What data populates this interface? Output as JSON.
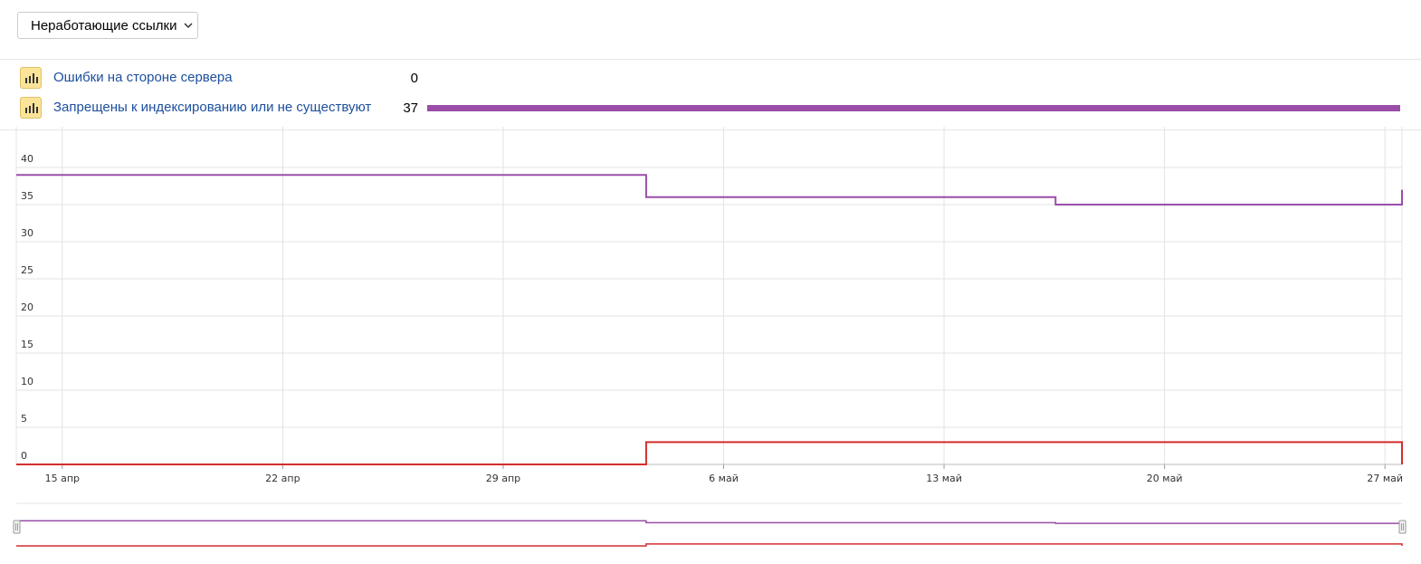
{
  "filter": {
    "selected": "Неработающие ссылки",
    "icon": "chevron-down-icon"
  },
  "legend": [
    {
      "label": "Ошибки на стороне сервера",
      "value": "0",
      "color": "#d42d2d",
      "icon": "bar-chart-icon"
    },
    {
      "label": "Запрещены к индексированию или не существуют",
      "value": "37",
      "color": "#9a4ea8",
      "icon": "bar-chart-icon"
    }
  ],
  "chart_data": {
    "type": "line",
    "step": true,
    "grid": true,
    "ylim": [
      0,
      45
    ],
    "y_ticks": [
      "0",
      "5",
      "10",
      "15",
      "20",
      "25",
      "30",
      "35",
      "40"
    ],
    "x_ticks": [
      "15 апр",
      "22 апр",
      "29 апр",
      "6 май",
      "13 май",
      "20 май",
      "27 май"
    ],
    "xlim": [
      "2020-04-14",
      "2020-05-28"
    ],
    "series": [
      {
        "name": "Запрещены к индексированию или не существуют",
        "color": "#9a4ea8",
        "points": [
          [
            "2020-04-14",
            39
          ],
          [
            "2020-05-04",
            36
          ],
          [
            "2020-05-17",
            35
          ],
          [
            "2020-05-28",
            37
          ]
        ]
      },
      {
        "name": "Ошибки на стороне сервера",
        "color": "#d42d2d",
        "points": [
          [
            "2020-04-14",
            0
          ],
          [
            "2020-05-04",
            3
          ],
          [
            "2020-05-28",
            0
          ]
        ]
      }
    ]
  }
}
